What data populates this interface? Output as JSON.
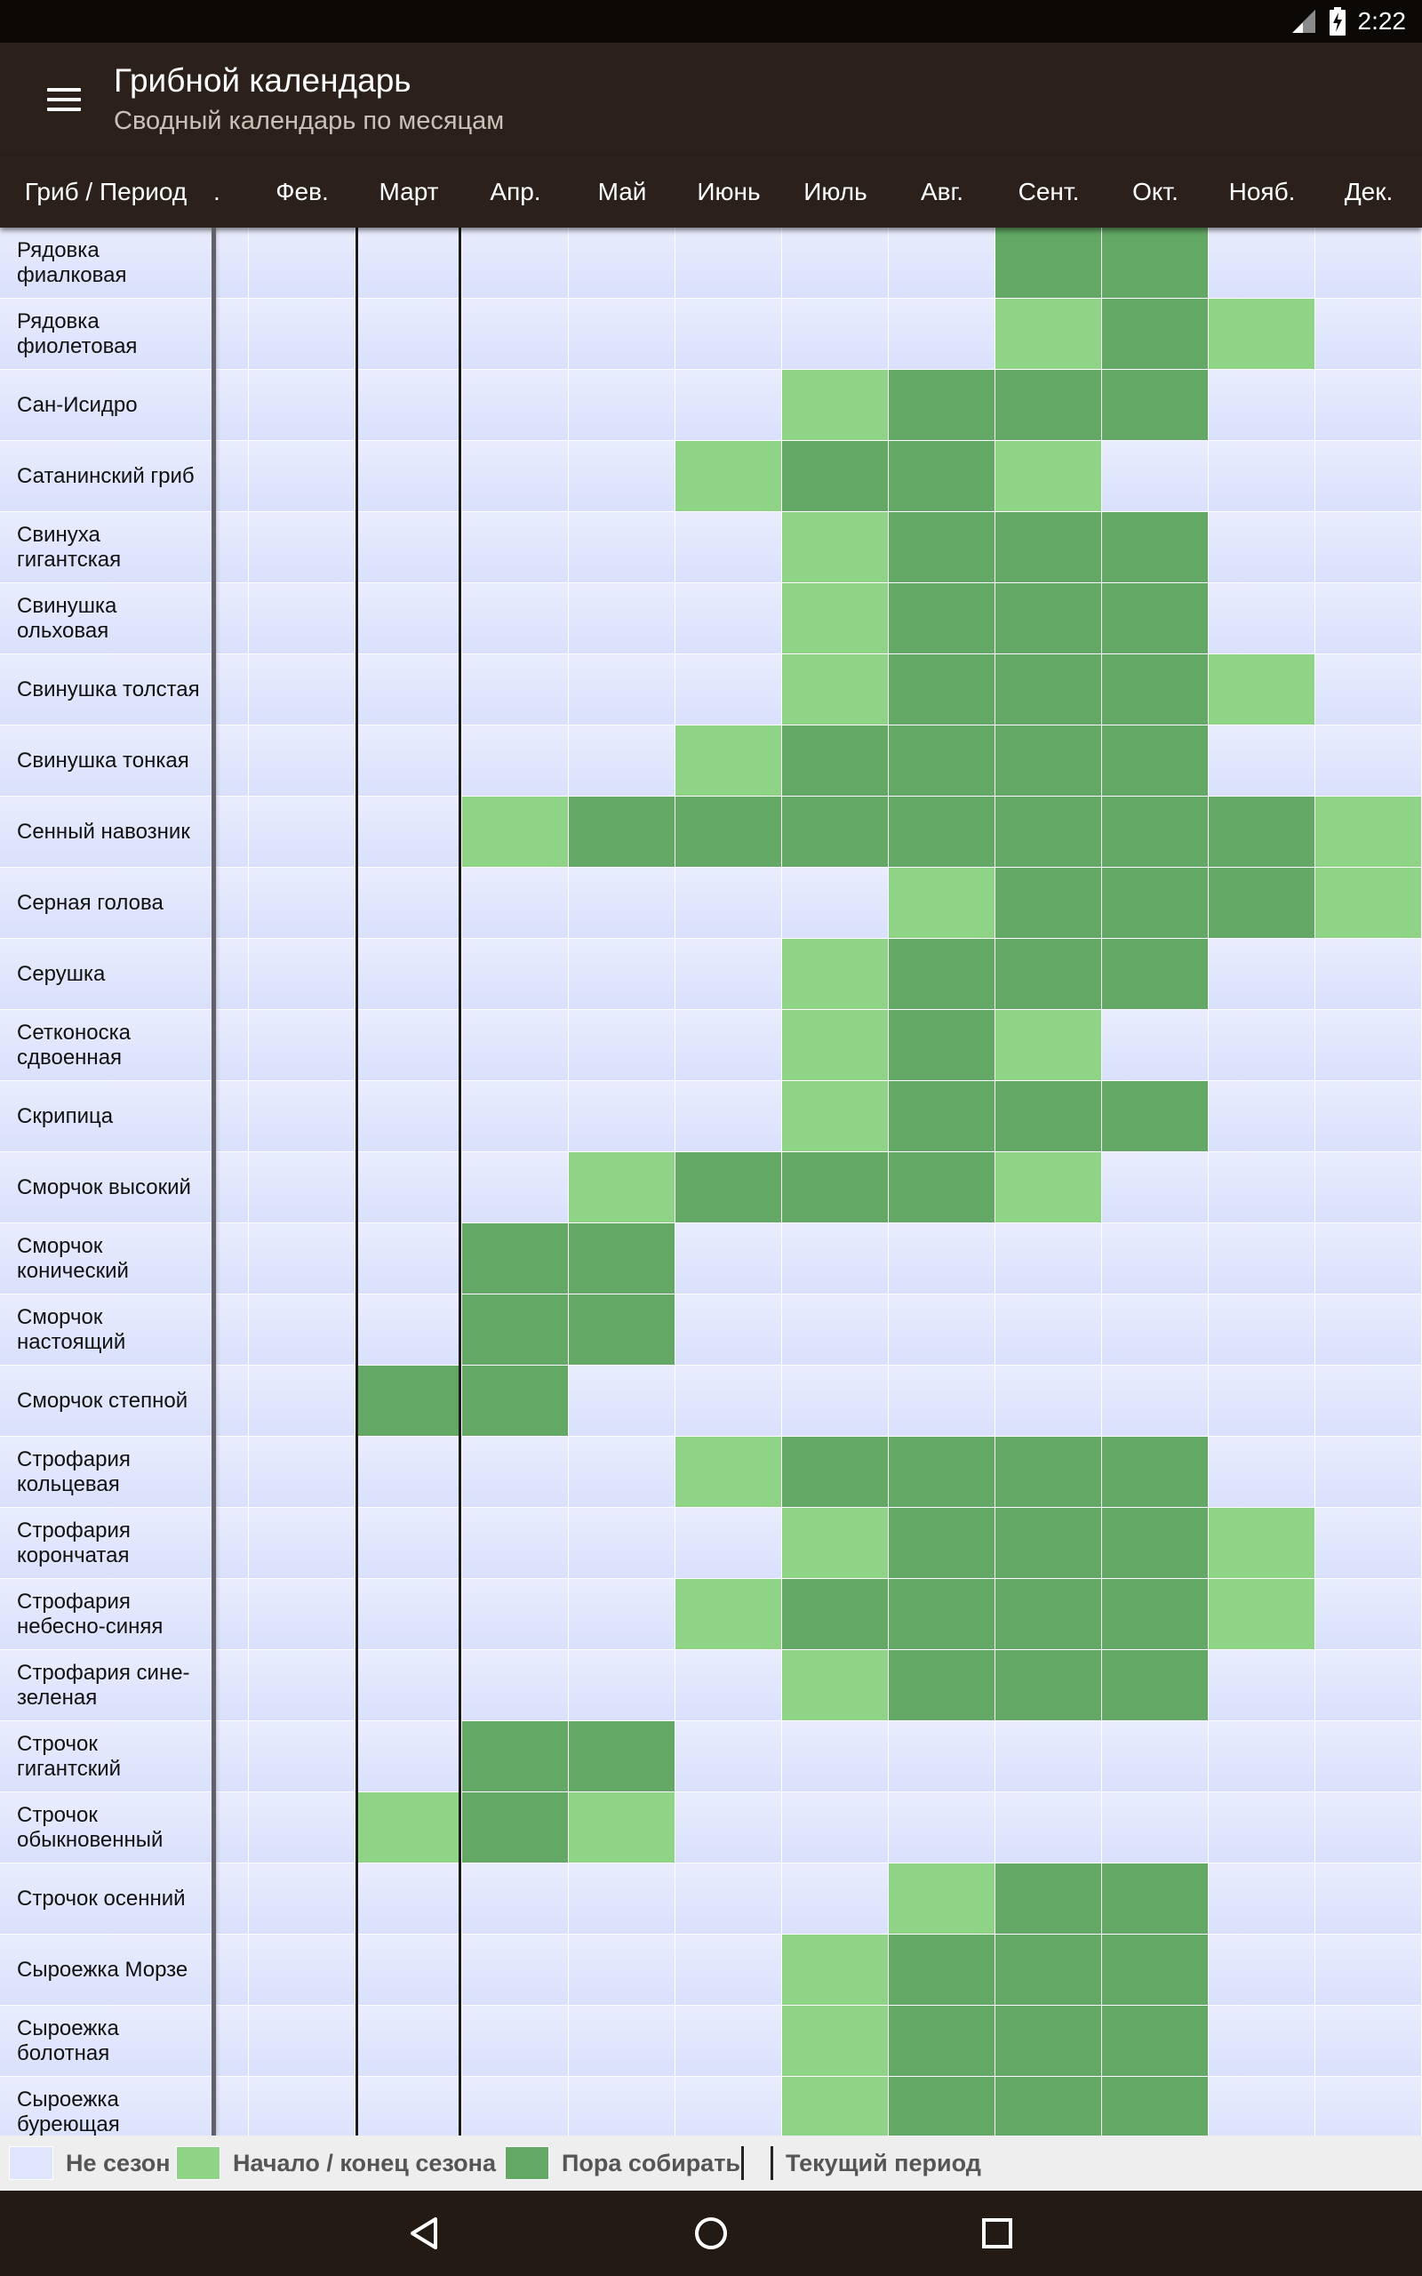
{
  "status_bar": {
    "time": "2:22",
    "icons": [
      "signal-icon",
      "battery-charging-icon"
    ]
  },
  "app_bar": {
    "title": "Грибной календарь",
    "subtitle": "Сводный календарь по месяцам",
    "menu_icon": "hamburger-menu-icon"
  },
  "header": {
    "corner_label": "Гриб / Период",
    "truncated_marker": ".",
    "months": [
      "Фев.",
      "Март",
      "Апр.",
      "Май",
      "Июнь",
      "Июль",
      "Авг.",
      "Сент.",
      "Окт.",
      "Нояб.",
      "Дек."
    ]
  },
  "legend": [
    {
      "label": "Не сезон",
      "color": "#dfe5fc"
    },
    {
      "label": "Начало / конец сезона",
      "color": "#8fd387"
    },
    {
      "label": "Пора собирать",
      "color": "#63a865"
    },
    {
      "label": "Текущий период",
      "color": "#ffffff"
    }
  ],
  "colors": {
    "off_season": "#dfe5fc",
    "start_end": "#8fd387",
    "harvest": "#63a865",
    "app_bar": "#2c211a"
  },
  "state_codes": {
    "0": "Не сезон",
    "1": "Начало / конец сезона",
    "2": "Пора собирать"
  },
  "mushrooms": [
    {
      "name": "Рядовка фиалковая",
      "periods": [
        0,
        0,
        0,
        0,
        0,
        0,
        0,
        0,
        2,
        2,
        0,
        0
      ]
    },
    {
      "name": "Рядовка фиолетовая",
      "periods": [
        0,
        0,
        0,
        0,
        0,
        0,
        0,
        0,
        1,
        2,
        1,
        0
      ]
    },
    {
      "name": "Сан-Исидро",
      "periods": [
        0,
        0,
        0,
        0,
        0,
        0,
        1,
        2,
        2,
        2,
        0,
        0
      ]
    },
    {
      "name": "Сатанинский гриб",
      "periods": [
        0,
        0,
        0,
        0,
        0,
        1,
        2,
        2,
        1,
        0,
        0,
        0
      ]
    },
    {
      "name": "Свинуха гигантская",
      "periods": [
        0,
        0,
        0,
        0,
        0,
        0,
        1,
        2,
        2,
        2,
        0,
        0
      ]
    },
    {
      "name": "Свинушка ольховая",
      "periods": [
        0,
        0,
        0,
        0,
        0,
        0,
        1,
        2,
        2,
        2,
        0,
        0
      ]
    },
    {
      "name": "Свинушка толстая",
      "periods": [
        0,
        0,
        0,
        0,
        0,
        0,
        1,
        2,
        2,
        2,
        1,
        0
      ]
    },
    {
      "name": "Свинушка тонкая",
      "periods": [
        0,
        0,
        0,
        0,
        0,
        1,
        2,
        2,
        2,
        2,
        0,
        0
      ]
    },
    {
      "name": "Сенный навозник",
      "periods": [
        0,
        0,
        0,
        1,
        2,
        2,
        2,
        2,
        2,
        2,
        2,
        1
      ]
    },
    {
      "name": "Серная голова",
      "periods": [
        0,
        0,
        0,
        0,
        0,
        0,
        0,
        1,
        2,
        2,
        2,
        1
      ]
    },
    {
      "name": "Серушка",
      "periods": [
        0,
        0,
        0,
        0,
        0,
        0,
        1,
        2,
        2,
        2,
        0,
        0
      ]
    },
    {
      "name": "Сетконоска сдвоенная",
      "periods": [
        0,
        0,
        0,
        0,
        0,
        0,
        1,
        2,
        1,
        0,
        0,
        0
      ]
    },
    {
      "name": "Скрипица",
      "periods": [
        0,
        0,
        0,
        0,
        0,
        0,
        1,
        2,
        2,
        2,
        0,
        0
      ]
    },
    {
      "name": "Сморчок высокий",
      "periods": [
        0,
        0,
        0,
        0,
        1,
        2,
        2,
        2,
        1,
        0,
        0,
        0
      ]
    },
    {
      "name": "Сморчок конический",
      "periods": [
        0,
        0,
        0,
        2,
        2,
        0,
        0,
        0,
        0,
        0,
        0,
        0
      ]
    },
    {
      "name": "Сморчок настоящий",
      "periods": [
        0,
        0,
        0,
        2,
        2,
        0,
        0,
        0,
        0,
        0,
        0,
        0
      ]
    },
    {
      "name": "Сморчок степной",
      "periods": [
        0,
        0,
        2,
        2,
        0,
        0,
        0,
        0,
        0,
        0,
        0,
        0
      ]
    },
    {
      "name": "Строфария кольцевая",
      "periods": [
        0,
        0,
        0,
        0,
        0,
        1,
        2,
        2,
        2,
        2,
        0,
        0
      ]
    },
    {
      "name": "Строфария корончатая",
      "periods": [
        0,
        0,
        0,
        0,
        0,
        0,
        1,
        2,
        2,
        2,
        1,
        0
      ]
    },
    {
      "name": "Строфария небесно-синяя",
      "periods": [
        0,
        0,
        0,
        0,
        0,
        1,
        2,
        2,
        2,
        2,
        1,
        0
      ]
    },
    {
      "name": "Строфария сине-зеленая",
      "periods": [
        0,
        0,
        0,
        0,
        0,
        0,
        1,
        2,
        2,
        2,
        0,
        0
      ]
    },
    {
      "name": "Строчок гигантский",
      "periods": [
        0,
        0,
        0,
        2,
        2,
        0,
        0,
        0,
        0,
        0,
        0,
        0
      ]
    },
    {
      "name": "Строчок обыкновенный",
      "periods": [
        0,
        0,
        1,
        2,
        1,
        0,
        0,
        0,
        0,
        0,
        0,
        0
      ]
    },
    {
      "name": "Строчок осенний",
      "periods": [
        0,
        0,
        0,
        0,
        0,
        0,
        0,
        1,
        2,
        2,
        0,
        0
      ]
    },
    {
      "name": "Сыроежка Морзе",
      "periods": [
        0,
        0,
        0,
        0,
        0,
        0,
        1,
        2,
        2,
        2,
        0,
        0
      ]
    },
    {
      "name": "Сыроежка болотная",
      "periods": [
        0,
        0,
        0,
        0,
        0,
        0,
        1,
        2,
        2,
        2,
        0,
        0
      ]
    },
    {
      "name": "Сыроежка буреющая",
      "periods": [
        0,
        0,
        0,
        0,
        0,
        0,
        1,
        2,
        2,
        2,
        0,
        0
      ]
    }
  ],
  "nav_bar": {
    "icons": [
      "back-icon",
      "home-icon",
      "recents-icon"
    ]
  }
}
